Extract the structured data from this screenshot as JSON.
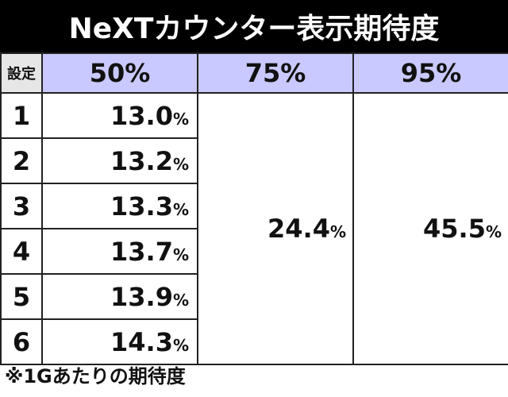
{
  "title": "NeXTカウンター表示期待度",
  "table": {
    "header": [
      "設定",
      "50%",
      "75%",
      "95%"
    ],
    "rows": [
      {
        "setting": "1",
        "p50": "13.0"
      },
      {
        "setting": "2",
        "p50": "13.2"
      },
      {
        "setting": "3",
        "p50": "13.3"
      },
      {
        "setting": "4",
        "p50": "13.7"
      },
      {
        "setting": "5",
        "p50": "13.9"
      },
      {
        "setting": "6",
        "p50": "14.3"
      }
    ],
    "p75_all": "24.4",
    "p95_all": "45.5",
    "percent_sign": "%"
  },
  "note": "※1Gあたりの期待度",
  "colors": {
    "title_bg": "#000000",
    "header_bg": "#c9c9ff",
    "setting_header_bg": "#e6e6e6"
  }
}
